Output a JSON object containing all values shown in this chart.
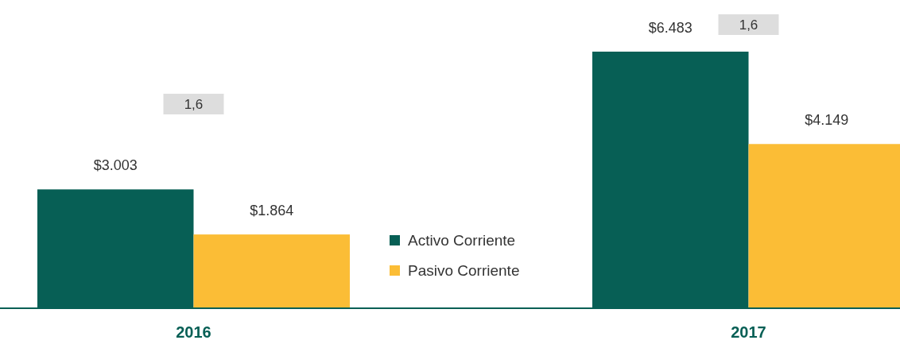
{
  "chart_data": {
    "type": "bar",
    "categories": [
      "2016",
      "2017"
    ],
    "series": [
      {
        "name": "Activo Corriente",
        "color": "#075f55",
        "values": [
          3003,
          6483
        ],
        "value_labels": [
          "$3.003",
          "$6.483"
        ]
      },
      {
        "name": "Pasivo Corriente",
        "color": "#fbbd36",
        "values": [
          1864,
          4149
        ],
        "value_labels": [
          "$1.864",
          "$4.149"
        ]
      }
    ],
    "tick_labels": "x",
    "legend": "center",
    "annotations": [
      "1,6",
      "1,6"
    ]
  }
}
